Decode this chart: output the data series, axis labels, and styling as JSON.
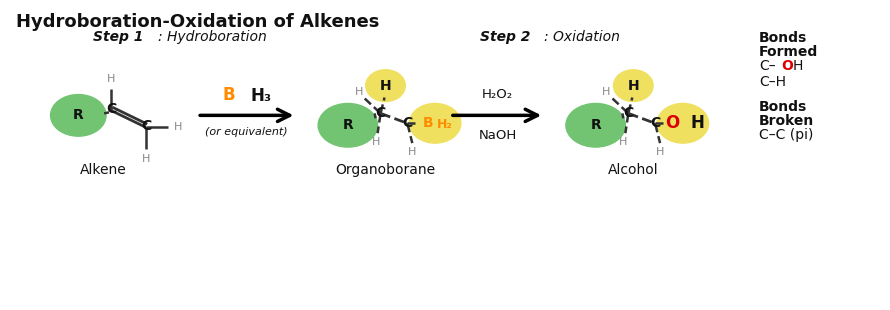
{
  "title": "Hydroboration-Oxidation of Alkenes",
  "title_fontsize": 13,
  "title_weight": "bold",
  "step1_label": "Step 1",
  "step1_desc": ": Hydroboration",
  "step2_label": "Step 2",
  "step2_desc": ": Oxidation",
  "reagent1_B": "B",
  "reagent1_H3": "H₃",
  "reagent1_sub": "(or equivalent)",
  "reagent2_line1": "H₂O₂",
  "reagent2_line2": "NaOH",
  "label_alkene": "Alkene",
  "label_organoborane": "Organoborane",
  "label_alcohol": "Alcohol",
  "bonds_formed_title": "Bonds\nFormed",
  "bonds_broken_title": "Bonds\nBroken",
  "bonds_broken": "C–C (pi)",
  "bg_color": "#ffffff",
  "green_color": "#72c472",
  "yellow_color": "#f0e060",
  "orange_color": "#ff8c00",
  "red_color": "#dd0000",
  "gray_color": "#888888",
  "black_color": "#111111"
}
